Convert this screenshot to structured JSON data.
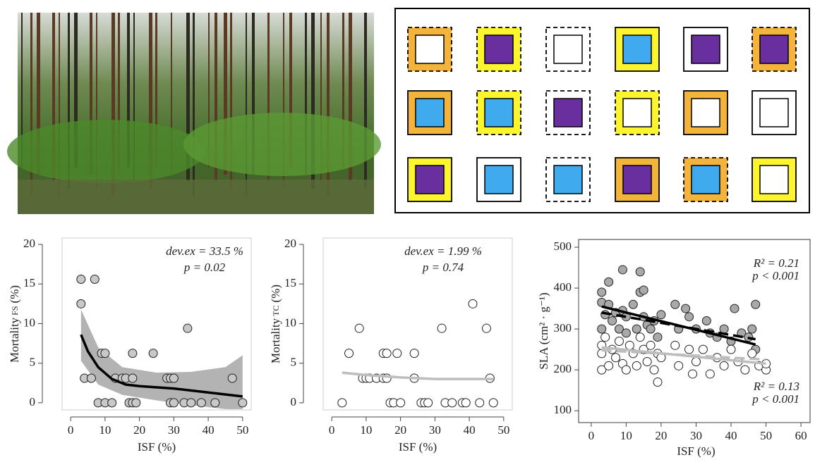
{
  "chart_data": [
    {
      "type": "scatter",
      "xlabel": "ISF (%)",
      "ylabel": "Mortality",
      "ylabel_sub": "FS",
      "ylabel_unit": "(%)",
      "annotations": [
        "dev.ex = 33.5 %",
        "p = 0.02"
      ],
      "xlim": [
        -2.5,
        52.5
      ],
      "ylim": [
        -0.9,
        20.8
      ],
      "xticks": [
        0,
        10,
        20,
        30,
        40,
        50
      ],
      "yticks": [
        0,
        5,
        10,
        15,
        20
      ],
      "series": [
        {
          "color": "#c8c8c8",
          "x": [
            3,
            3,
            4,
            6,
            7,
            8,
            9,
            10,
            10,
            12,
            13,
            15,
            16,
            17,
            18,
            18,
            18,
            19,
            24,
            28,
            29,
            29,
            30,
            30,
            33,
            34,
            35,
            38,
            42,
            47,
            50
          ],
          "y": [
            15.6,
            12.5,
            3.1,
            3.1,
            15.6,
            0,
            6.25,
            6.25,
            0,
            0,
            3.1,
            3.1,
            3.1,
            0,
            3.1,
            6.25,
            0,
            0,
            6.25,
            3.1,
            3.1,
            0,
            0,
            3.1,
            0,
            9.4,
            0,
            0,
            0,
            3.1,
            0
          ]
        }
      ],
      "band": {
        "color": "#b3b3b3",
        "x": [
          3,
          8,
          15,
          25,
          35,
          45,
          50
        ],
        "upper": [
          11.8,
          7,
          4.5,
          3.8,
          3.9,
          4.5,
          6
        ],
        "lower": [
          5.3,
          2.3,
          1,
          0.3,
          -0.3,
          -0.8,
          -0.8
        ]
      },
      "fit": {
        "color": "#000000",
        "x": [
          3,
          5,
          8,
          12,
          16,
          20,
          30,
          40,
          50
        ],
        "y": [
          8.6,
          6.5,
          4.5,
          3,
          2.3,
          2.1,
          1.8,
          1.3,
          0.8
        ]
      }
    },
    {
      "type": "scatter",
      "xlabel": "ISF (%)",
      "ylabel": "Mortality",
      "ylabel_sub": "TC",
      "ylabel_unit": "(%)",
      "annotations": [
        "dev.ex = 1.99 %",
        "p = 0.74"
      ],
      "xlim": [
        -2.5,
        52.5
      ],
      "ylim": [
        -0.9,
        20.8
      ],
      "xticks": [
        0,
        10,
        20,
        30,
        40,
        50
      ],
      "yticks": [
        0,
        5,
        10,
        15,
        20
      ],
      "series": [
        {
          "color": "#ffffff",
          "x": [
            3,
            5,
            8,
            9,
            10,
            11,
            13,
            15,
            15,
            16,
            16,
            17,
            18,
            19,
            20,
            24,
            24,
            26,
            27,
            28,
            32,
            33,
            35,
            38,
            39,
            41,
            43,
            45,
            46,
            47
          ],
          "y": [
            0,
            6.25,
            9.4,
            3.1,
            3.1,
            3.1,
            3.1,
            6.25,
            3.1,
            6.25,
            3.1,
            0,
            0,
            6.25,
            0,
            6.25,
            3.1,
            0,
            0,
            0,
            9.4,
            0,
            0,
            0,
            0,
            12.5,
            0,
            9.4,
            3.1,
            0
          ]
        }
      ],
      "fit": {
        "color": "#bdbdbd",
        "x": [
          3,
          10,
          20,
          30,
          47
        ],
        "y": [
          3.8,
          3.5,
          3.2,
          3,
          3
        ]
      }
    },
    {
      "type": "scatter",
      "xlabel": "ISF (%)",
      "ylabel": "SLA (cm² · g⁻¹)",
      "annotations": [
        "R² = 0.21",
        "p  < 0.001",
        "R² = 0.13",
        "p  < 0.001"
      ],
      "xlim": [
        -3.6,
        62.6
      ],
      "ylim": [
        71,
        519
      ],
      "xticks": [
        0,
        10,
        20,
        30,
        40,
        50,
        60
      ],
      "yticks": [
        100,
        200,
        300,
        400,
        500
      ],
      "series": [
        {
          "color": "#a9a9a9",
          "x": [
            3,
            3,
            3,
            4,
            5,
            5,
            6,
            7,
            8,
            9,
            9,
            10,
            10,
            12,
            13,
            14,
            14,
            15,
            15,
            16,
            17,
            18,
            19,
            20,
            24,
            25,
            27,
            28,
            30,
            33,
            34,
            36,
            38,
            40,
            41,
            43,
            45,
            46,
            47,
            47
          ],
          "y": [
            390,
            365,
            300,
            335,
            415,
            360,
            320,
            340,
            300,
            445,
            345,
            330,
            290,
            360,
            300,
            390,
            440,
            395,
            330,
            310,
            300,
            320,
            280,
            335,
            360,
            300,
            350,
            330,
            300,
            320,
            290,
            280,
            300,
            270,
            350,
            290,
            280,
            300,
            360,
            250
          ]
        },
        {
          "color": "#ffffff",
          "x": [
            3,
            3,
            3,
            4,
            5,
            6,
            7,
            8,
            9,
            10,
            11,
            12,
            13,
            14,
            15,
            16,
            17,
            18,
            19,
            19,
            20,
            24,
            25,
            28,
            29,
            30,
            32,
            34,
            36,
            38,
            40,
            42,
            44,
            46,
            48,
            50,
            50
          ],
          "y": [
            200,
            240,
            260,
            280,
            210,
            250,
            230,
            270,
            215,
            200,
            260,
            240,
            210,
            280,
            250,
            220,
            260,
            200,
            240,
            170,
            230,
            260,
            210,
            250,
            190,
            220,
            250,
            190,
            230,
            210,
            250,
            220,
            200,
            240,
            210,
            200,
            215
          ]
        }
      ],
      "lines": [
        {
          "color": "#000000",
          "dash": false,
          "x": [
            3,
            47
          ],
          "y": [
            355,
            262
          ]
        },
        {
          "color": "#000000",
          "dash": true,
          "x": [
            3,
            47
          ],
          "y": [
            340,
            275
          ]
        },
        {
          "color": "#bdbdbd",
          "dash": false,
          "x": [
            3,
            50
          ],
          "y": [
            255,
            215
          ]
        },
        {
          "color": "#bdbdbd",
          "dash": true,
          "x": [
            3,
            50
          ],
          "y": [
            248,
            225
          ]
        }
      ]
    }
  ]
}
